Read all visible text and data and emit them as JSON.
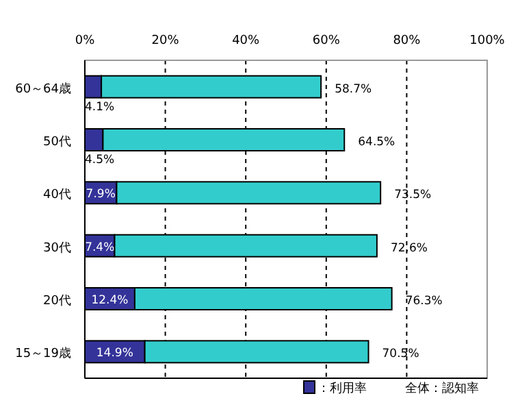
{
  "chart_data": {
    "type": "bar",
    "orientation": "horizontal",
    "stacked": true,
    "categories": [
      "60～64歳",
      "50代",
      "40代",
      "30代",
      "20代",
      "15～19歳"
    ],
    "series": [
      {
        "name": "：利用率",
        "color": "#333399",
        "values": [
          4.1,
          4.5,
          7.9,
          7.4,
          12.4,
          14.9
        ],
        "value_labels": [
          "4.1%",
          "4.5%",
          "7.9%",
          "7.4%",
          "12.4%",
          "14.9%"
        ]
      },
      {
        "color": "#33cccc",
        "values": [
          54.6,
          60.0,
          65.6,
          65.2,
          63.9,
          55.6
        ]
      }
    ],
    "totals": [
      "58.7%",
      "64.5%",
      "73.5%",
      "72.6%",
      "76.3%",
      "70.5%"
    ],
    "xlim": [
      0,
      100
    ],
    "xticks": [
      {
        "value": 0,
        "label": "0%"
      },
      {
        "value": 20,
        "label": "20%"
      },
      {
        "value": 40,
        "label": "40%"
      },
      {
        "value": 60,
        "label": "60%"
      },
      {
        "value": 80,
        "label": "80%"
      },
      {
        "value": 100,
        "label": "100%"
      }
    ],
    "grid": "x",
    "legend": "bottom right",
    "annotations": [
      "全体：認知率"
    ]
  }
}
